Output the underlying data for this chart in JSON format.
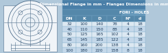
{
  "title": "Dimensional Flange in mm - Flanges Dimensions in mm",
  "col_headers": [
    "DN",
    "K",
    "D",
    "C",
    "N°",
    "d"
  ],
  "fori_holes_label": "FORI - HOLES",
  "rows": [
    [
      "32",
      "100",
      "140",
      "78",
      "4",
      "18"
    ],
    [
      "40",
      "110",
      "150",
      "88",
      "4",
      "18"
    ],
    [
      "50",
      "125",
      "165",
      "102",
      "4",
      "18"
    ],
    [
      "65",
      "145",
      "185",
      "122",
      "4",
      "18"
    ],
    [
      "80",
      "160",
      "200",
      "138",
      "4",
      "18"
    ],
    [
      "100",
      "180",
      "220",
      "158",
      "8",
      "18"
    ]
  ],
  "title_bg": "#4a7fa8",
  "subheader_bg": "#6699bb",
  "col_header_bg": "#5588aa",
  "row_bg_light": "#dce8f2",
  "row_bg_dark": "#c4d8ea",
  "header_text": "#ffffff",
  "data_text": "#1a3a5a",
  "border_color": "#7aaac8",
  "figure_bg": "#b0c8da",
  "diagram_bg": "#e8eff5",
  "diagram_line": "#4a6a88",
  "diagram_outer_bg": "#f0f4f8"
}
